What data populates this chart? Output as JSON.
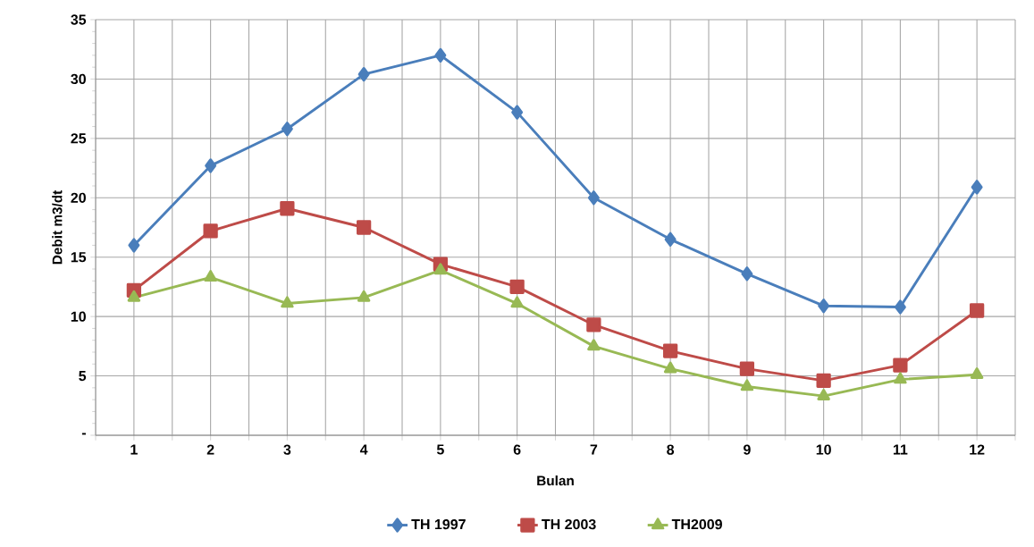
{
  "chart_data": {
    "type": "line",
    "xlabel": "Bulan",
    "ylabel": "Debit m3/dt",
    "categories": [
      "1",
      "2",
      "3",
      "4",
      "5",
      "6",
      "7",
      "8",
      "9",
      "10",
      "11",
      "12"
    ],
    "series": [
      {
        "name": "TH 1997",
        "color": "#4a7ebb",
        "marker": "diamond",
        "values": [
          16.0,
          22.7,
          25.8,
          30.4,
          32.0,
          27.2,
          20.0,
          16.5,
          13.6,
          10.9,
          10.8,
          20.9
        ]
      },
      {
        "name": "TH 2003",
        "color": "#be4b48",
        "marker": "square",
        "values": [
          12.2,
          17.2,
          19.1,
          17.5,
          14.4,
          12.5,
          9.3,
          7.1,
          5.6,
          4.6,
          5.9,
          10.5
        ]
      },
      {
        "name": "TH2009",
        "color": "#98b954",
        "marker": "triangle",
        "values": [
          11.6,
          13.3,
          11.1,
          11.6,
          13.9,
          11.1,
          7.5,
          5.6,
          4.1,
          3.3,
          4.7,
          5.1
        ]
      }
    ],
    "ylim": [
      0,
      35
    ],
    "yticks": [
      {
        "value": 0,
        "label": "-"
      },
      5,
      10,
      15,
      20,
      25,
      30,
      35
    ],
    "grid": true,
    "legend": "bottom",
    "line_style": "solid"
  }
}
